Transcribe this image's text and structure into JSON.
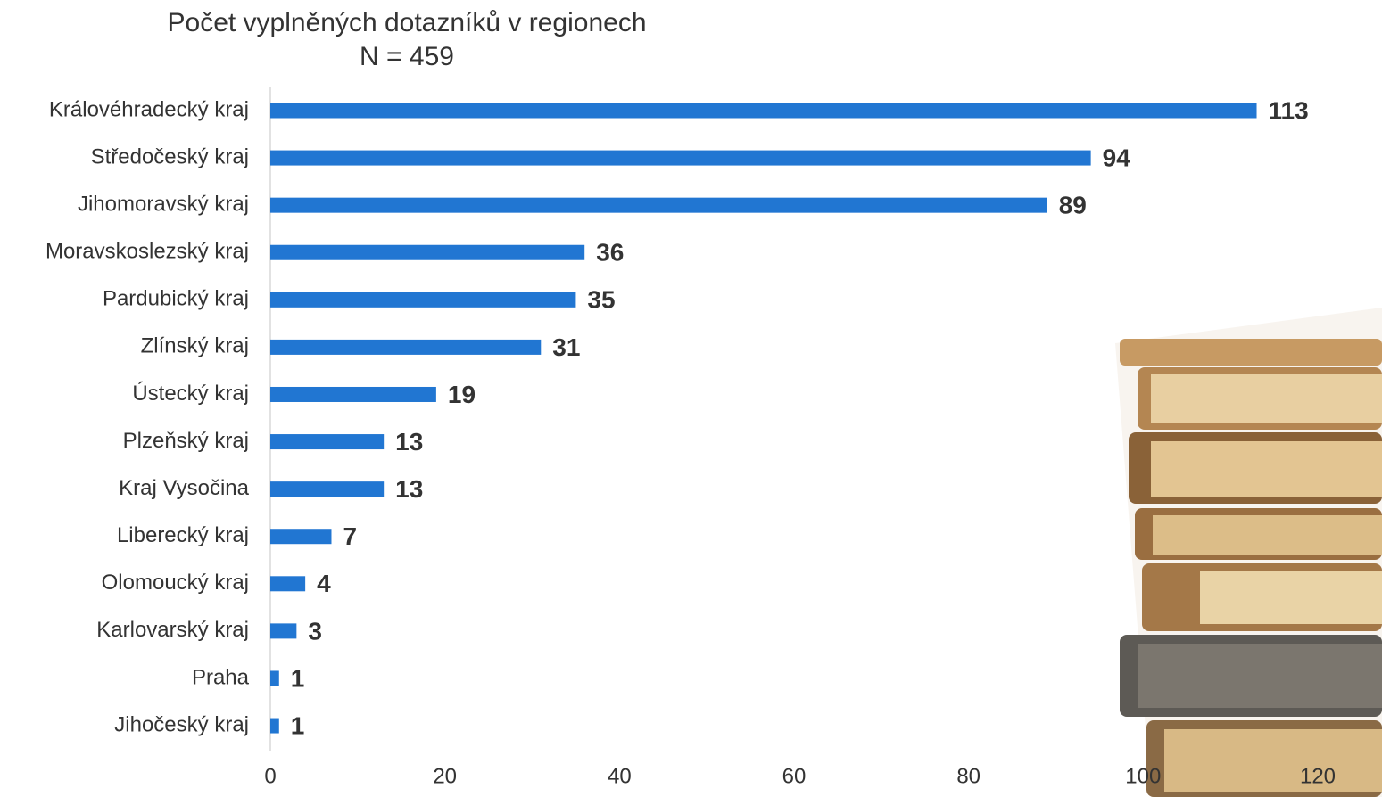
{
  "chart_data": {
    "type": "bar",
    "orientation": "horizontal",
    "title": "Počet vyplněných dotazníků v regionech",
    "subtitle": "N = 459",
    "categories": [
      "Královéhradecký kraj",
      "Středočeský kraj",
      "Jihomoravský kraj",
      "Moravskoslezský kraj",
      "Pardubický kraj",
      "Zlínský kraj",
      "Ústecký kraj",
      "Plzeňský kraj",
      "Kraj Vysočina",
      "Liberecký kraj",
      "Olomoucký kraj",
      "Karlovarský kraj",
      "Praha",
      "Jihočeský kraj"
    ],
    "values": [
      113,
      94,
      89,
      36,
      35,
      31,
      19,
      13,
      13,
      7,
      4,
      3,
      1,
      1
    ],
    "color": "#2176d2",
    "xlim": [
      0,
      120
    ],
    "xticks": [
      0,
      20,
      40,
      60,
      80,
      100,
      120
    ],
    "grid": false
  }
}
